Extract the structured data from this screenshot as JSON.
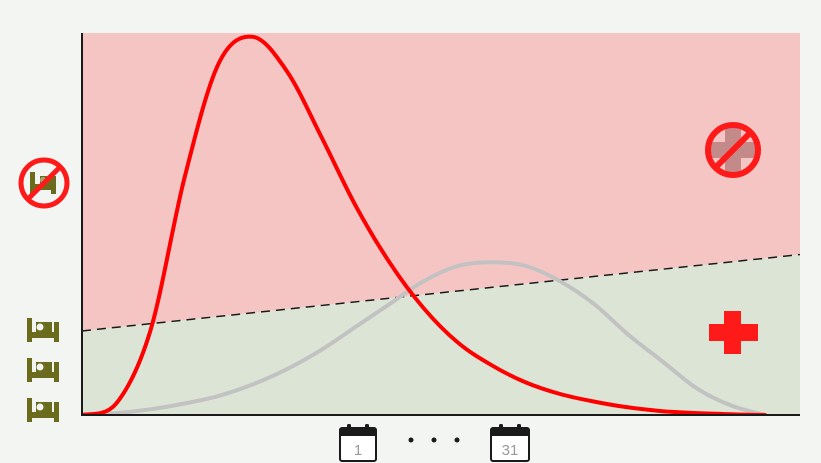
{
  "colors": {
    "background": "#f3f5f2",
    "overload_zone": "#f5c5c4",
    "capacity_zone": "#dce5d5",
    "unmitigated_curve": "#ff0000",
    "flattened_curve": "#c2c2c2",
    "capacity_line": "#1a1a1a",
    "bed_icons": "#6b6b1e",
    "hospital_cross": "#ff1a1a",
    "prohibition": "#ff1a1a"
  },
  "icons": {
    "left_axis_top": "no-hospital-bed-icon",
    "left_axis_beds": [
      "hospital-bed-icon",
      "hospital-bed-icon",
      "hospital-bed-icon"
    ],
    "overload_zone": "no-medical-care-icon",
    "capacity_zone": "medical-cross-icon",
    "x_axis": [
      "calendar-icon",
      "ellipsis",
      "calendar-icon"
    ]
  },
  "calendar": {
    "start_day": "1",
    "end_day": "31"
  },
  "chart_data": {
    "type": "line",
    "title": "",
    "xlabel": "",
    "ylabel": "",
    "xlim": [
      0,
      1
    ],
    "ylim": [
      0,
      1
    ],
    "series": [
      {
        "role": "unmitigated",
        "color": "#ff0000",
        "x": [
          0,
          0.05,
          0.1,
          0.15,
          0.2,
          0.25,
          0.3,
          0.35,
          0.4,
          0.45,
          0.5,
          0.55,
          0.6,
          0.65,
          0.7,
          0.75,
          0.8,
          0.85,
          0.9,
          0.95,
          1.0
        ],
        "y": [
          0.0,
          0.03,
          0.22,
          0.62,
          0.92,
          0.99,
          0.9,
          0.73,
          0.55,
          0.4,
          0.28,
          0.19,
          0.13,
          0.085,
          0.055,
          0.035,
          0.02,
          0.01,
          0.005,
          0.002,
          0.0
        ]
      },
      {
        "role": "flattened",
        "color": "#c2c2c2",
        "x": [
          0,
          0.05,
          0.1,
          0.15,
          0.2,
          0.25,
          0.3,
          0.35,
          0.4,
          0.45,
          0.5,
          0.55,
          0.6,
          0.65,
          0.7,
          0.75,
          0.8,
          0.85,
          0.9,
          0.95,
          1.0
        ],
        "y": [
          0.0,
          0.005,
          0.015,
          0.03,
          0.05,
          0.08,
          0.12,
          0.17,
          0.23,
          0.29,
          0.35,
          0.39,
          0.4,
          0.39,
          0.35,
          0.29,
          0.21,
          0.14,
          0.07,
          0.025,
          0.0
        ]
      }
    ],
    "capacity_line": {
      "style": "dashed",
      "y_start": 0.22,
      "y_end": 0.42
    }
  }
}
